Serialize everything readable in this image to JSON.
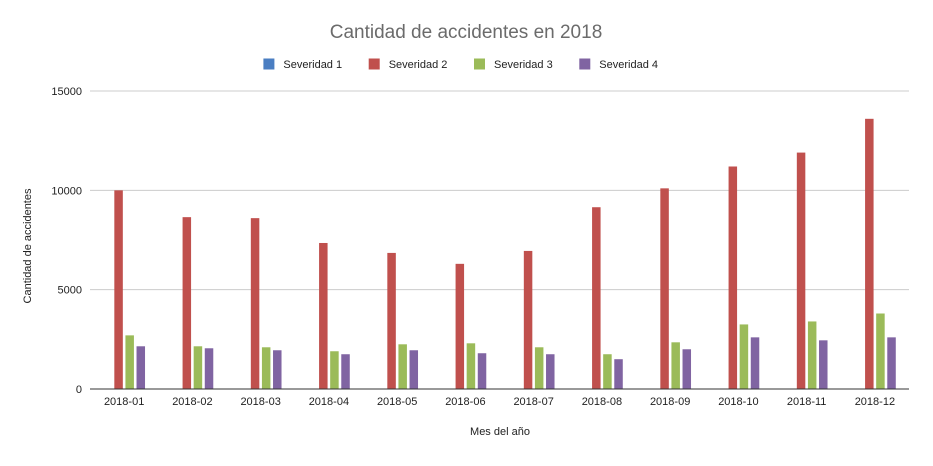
{
  "chart_data": {
    "type": "bar",
    "title": "Cantidad de accidentes en 2018",
    "xlabel": "Mes del año",
    "ylabel": "Cantidad de accidentes",
    "ylim": [
      0,
      15000
    ],
    "yticks": [
      0,
      5000,
      10000,
      15000
    ],
    "grid": true,
    "legend_position": "top",
    "categories": [
      "2018-01",
      "2018-02",
      "2018-03",
      "2018-04",
      "2018-05",
      "2018-06",
      "2018-07",
      "2018-08",
      "2018-09",
      "2018-10",
      "2018-11",
      "2018-12"
    ],
    "series": [
      {
        "name": "Severidad 1",
        "color": "#4A7EC2",
        "values": [
          0,
          0,
          0,
          0,
          0,
          0,
          0,
          0,
          0,
          0,
          0,
          0
        ]
      },
      {
        "name": "Severidad 2",
        "color": "#C0504D",
        "values": [
          10000,
          8650,
          8600,
          7350,
          6850,
          6300,
          6950,
          9150,
          10100,
          11200,
          11900,
          13600
        ]
      },
      {
        "name": "Severidad 3",
        "color": "#9BBB59",
        "values": [
          2700,
          2150,
          2100,
          1900,
          2250,
          2300,
          2100,
          1750,
          2350,
          3250,
          3400,
          3800
        ]
      },
      {
        "name": "Severidad 4",
        "color": "#8064A2",
        "values": [
          2150,
          2050,
          1950,
          1750,
          1950,
          1800,
          1750,
          1500,
          2000,
          2600,
          2450,
          2600
        ]
      }
    ]
  }
}
